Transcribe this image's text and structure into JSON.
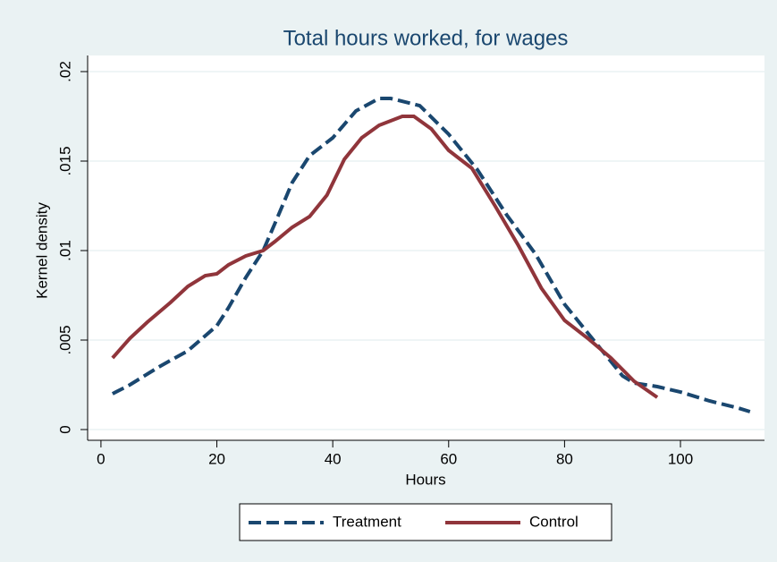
{
  "chart_data": {
    "type": "line",
    "title": "Total hours worked, for wages",
    "x_label": "Hours",
    "y_label": "Kernel density",
    "xlim": [
      -2.3,
      114.5
    ],
    "ylim": [
      -0.0006,
      0.0209
    ],
    "xticks": [
      0,
      20,
      40,
      60,
      80,
      100
    ],
    "yticks": [
      0,
      {
        "value": 0.005,
        "label": ".005"
      },
      {
        "value": 0.01,
        "label": ".01"
      },
      {
        "value": 0.015,
        "label": ".015"
      },
      {
        "value": 0.02,
        "label": ".02"
      }
    ],
    "grid": true,
    "legend": "bottom",
    "series": [
      {
        "name": "Treatment",
        "color": "#1a476f",
        "dash": true,
        "x": [
          2,
          5,
          10,
          15,
          20,
          22,
          25,
          28,
          30,
          33,
          36,
          40,
          44,
          48,
          50,
          55,
          60,
          65,
          70,
          75,
          80,
          85,
          90,
          92,
          96,
          100,
          105,
          110,
          112
        ],
        "values": [
          0.002,
          0.0025,
          0.0035,
          0.0044,
          0.0058,
          0.0068,
          0.0085,
          0.01,
          0.0115,
          0.0138,
          0.0153,
          0.0163,
          0.0178,
          0.0185,
          0.0185,
          0.0181,
          0.0165,
          0.0145,
          0.012,
          0.0098,
          0.007,
          0.005,
          0.003,
          0.0026,
          0.0024,
          0.0021,
          0.0016,
          0.0012,
          0.001
        ]
      },
      {
        "name": "Control",
        "color": "#90353b",
        "dash": false,
        "x": [
          2,
          5,
          8,
          12,
          15,
          18,
          20,
          22,
          25,
          28,
          30,
          33,
          36,
          39,
          42,
          45,
          48,
          52,
          54,
          57,
          60,
          64,
          68,
          72,
          76,
          80,
          84,
          88,
          92,
          96
        ],
        "values": [
          0.004,
          0.0051,
          0.006,
          0.0071,
          0.008,
          0.0086,
          0.0087,
          0.0092,
          0.0097,
          0.01,
          0.0105,
          0.0113,
          0.0119,
          0.0131,
          0.0151,
          0.0163,
          0.017,
          0.0175,
          0.0175,
          0.0168,
          0.0156,
          0.0146,
          0.0125,
          0.0103,
          0.0079,
          0.0061,
          0.0051,
          0.004,
          0.0027,
          0.0018
        ]
      }
    ]
  }
}
